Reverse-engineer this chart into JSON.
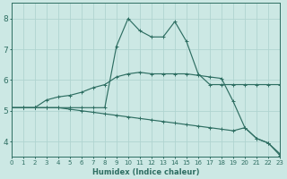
{
  "xlabel": "Humidex (Indice chaleur)",
  "xlim": [
    0,
    23
  ],
  "ylim": [
    3.5,
    8.5
  ],
  "yticks": [
    4,
    5,
    6,
    7,
    8
  ],
  "xticks": [
    0,
    1,
    2,
    3,
    4,
    5,
    6,
    7,
    8,
    9,
    10,
    11,
    12,
    13,
    14,
    15,
    16,
    17,
    18,
    19,
    20,
    21,
    22,
    23
  ],
  "bg_color": "#cce8e4",
  "grid_color": "#b0d4d0",
  "line_color": "#2e6e62",
  "lines": [
    {
      "x": [
        0,
        1,
        2,
        3,
        4,
        5,
        6,
        7,
        8,
        9,
        10,
        11,
        12,
        13,
        14,
        15,
        16,
        17,
        18,
        19,
        20,
        21,
        22,
        23
      ],
      "y": [
        5.1,
        5.1,
        5.1,
        5.1,
        5.1,
        5.1,
        5.1,
        5.1,
        5.1,
        7.1,
        8.0,
        7.6,
        7.4,
        7.4,
        7.9,
        7.25,
        6.2,
        5.85,
        5.85,
        5.85,
        5.85,
        5.85,
        5.85,
        5.85
      ]
    },
    {
      "x": [
        0,
        1,
        2,
        3,
        4,
        5,
        6,
        7,
        8,
        9,
        10,
        11,
        12,
        13,
        14,
        15,
        16,
        17,
        18,
        19,
        20,
        21,
        22,
        23
      ],
      "y": [
        5.1,
        5.1,
        5.1,
        5.35,
        5.45,
        5.5,
        5.6,
        5.75,
        5.85,
        6.1,
        6.2,
        6.25,
        6.2,
        6.2,
        6.2,
        6.2,
        6.15,
        6.1,
        6.05,
        5.3,
        4.45,
        4.1,
        3.95,
        3.6
      ]
    },
    {
      "x": [
        0,
        1,
        2,
        3,
        4,
        5,
        6,
        7,
        8,
        9,
        10,
        11,
        12,
        13,
        14,
        15,
        16,
        17,
        18,
        19,
        20,
        21,
        22,
        23
      ],
      "y": [
        5.1,
        5.1,
        5.1,
        5.1,
        5.1,
        5.05,
        5.0,
        4.95,
        4.9,
        4.85,
        4.8,
        4.75,
        4.7,
        4.65,
        4.6,
        4.55,
        4.5,
        4.45,
        4.4,
        4.35,
        4.45,
        4.1,
        3.95,
        3.55
      ]
    }
  ]
}
